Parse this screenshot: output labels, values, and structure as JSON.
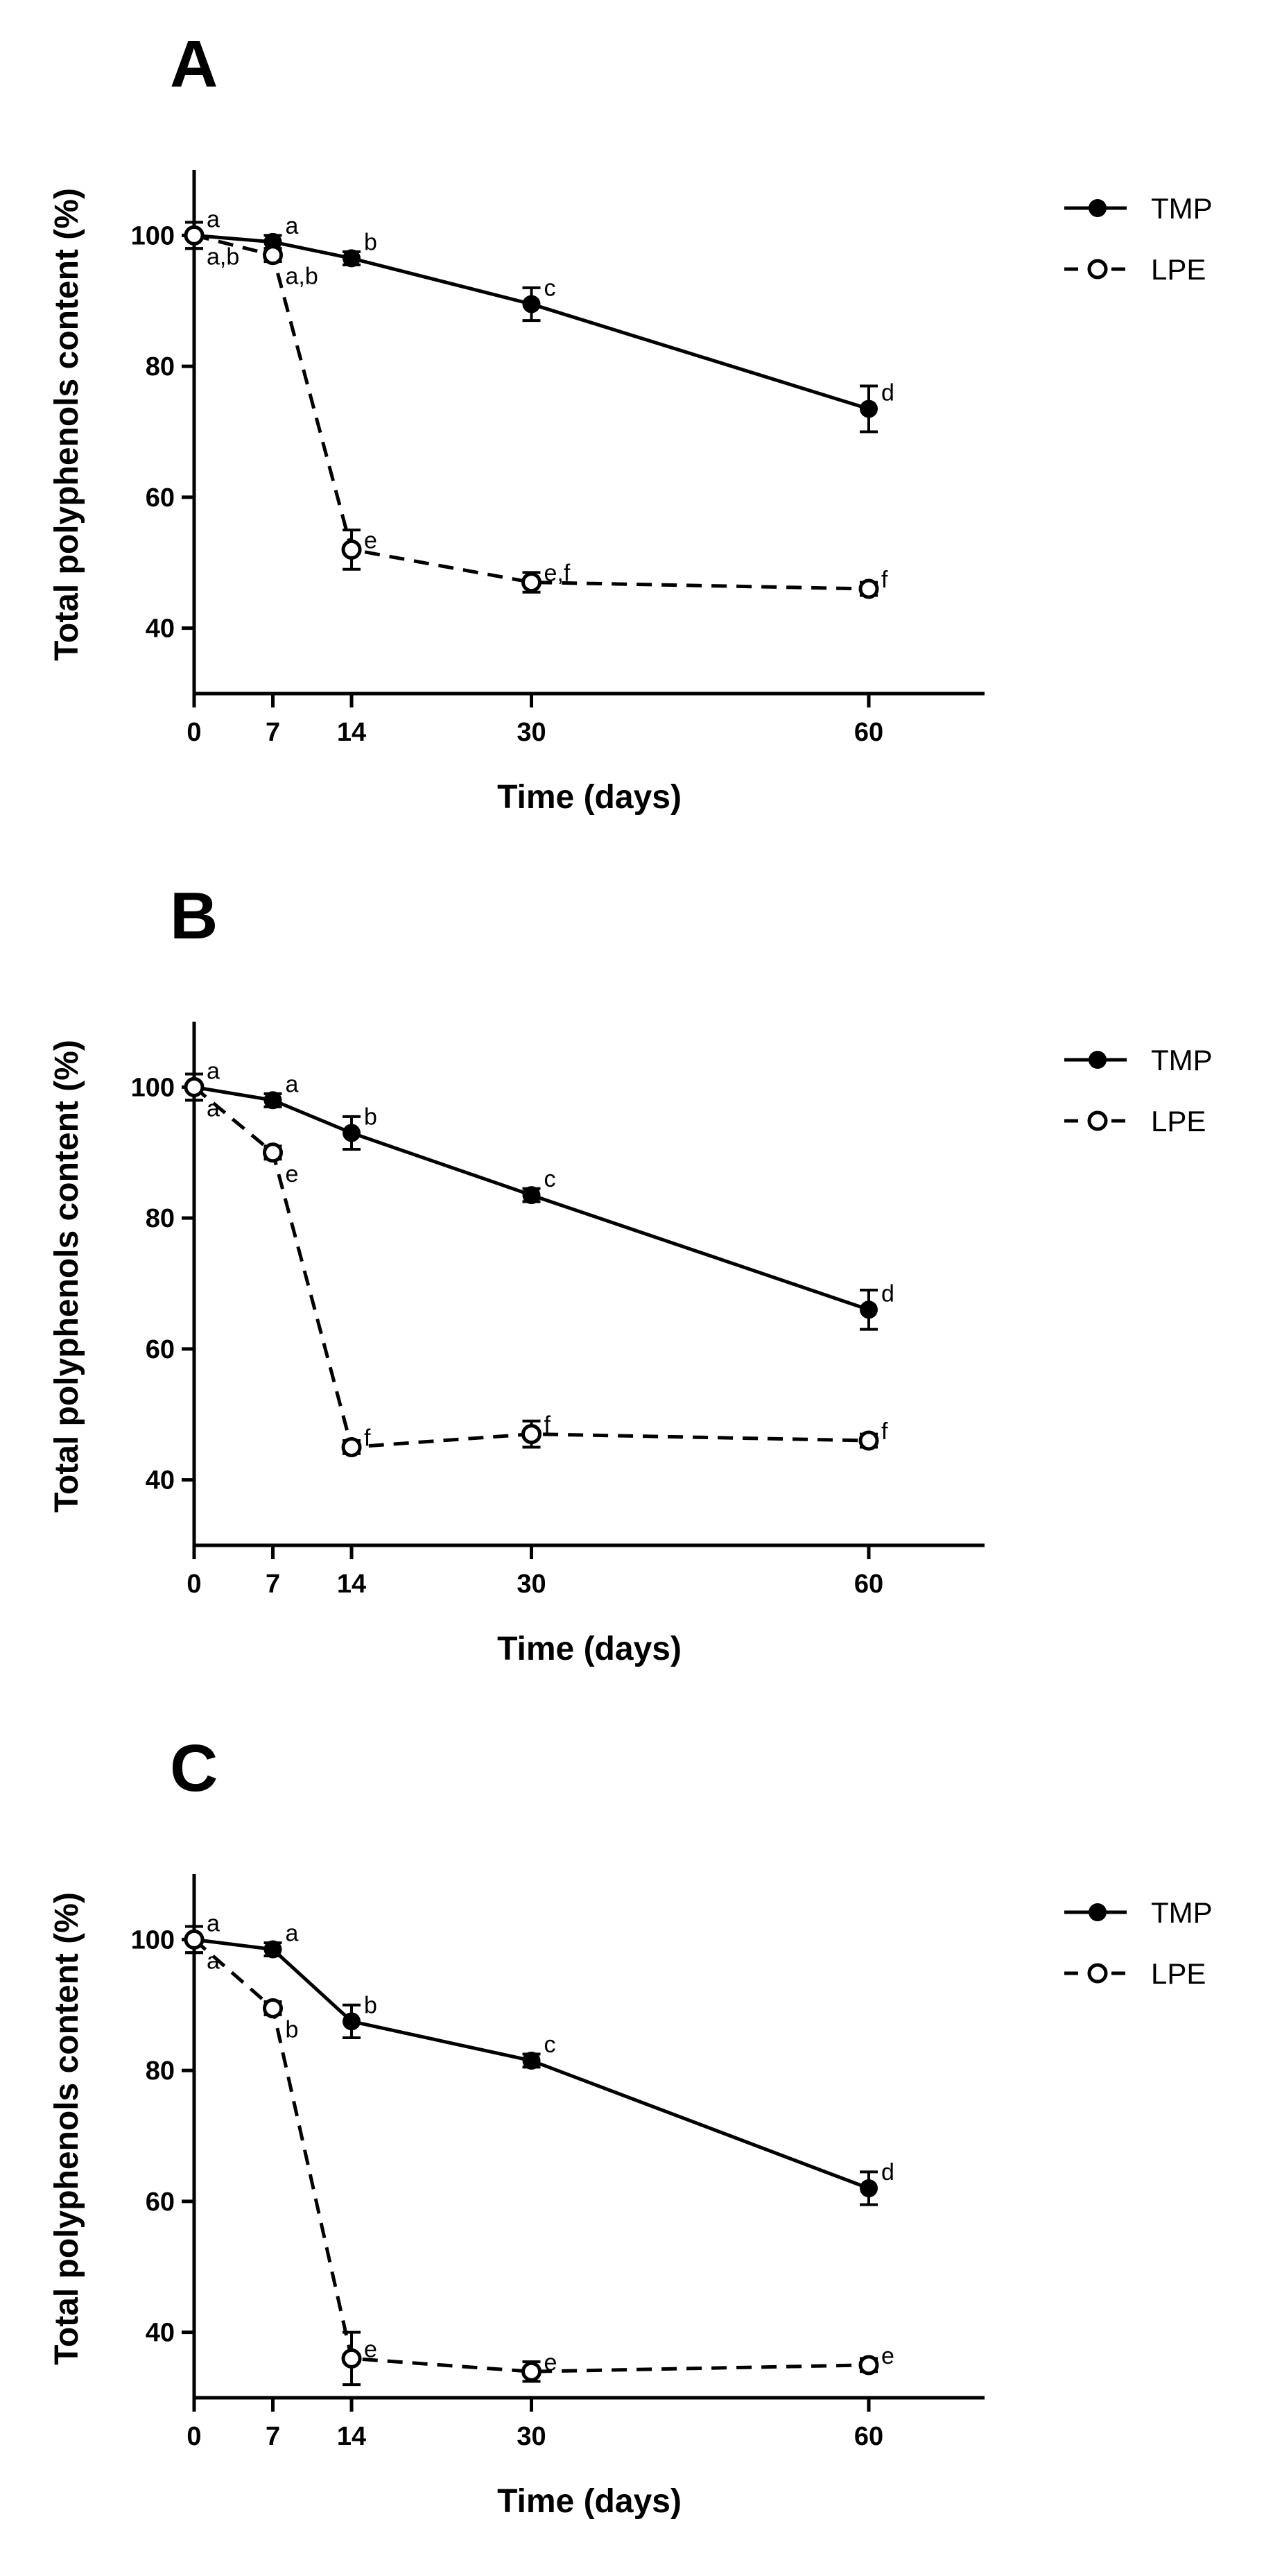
{
  "chart_data": [
    {
      "type": "line",
      "panel": "A",
      "xlabel": "Time (days)",
      "ylabel": "Total polyphenols content (%)",
      "xlim": [
        0,
        70
      ],
      "ylim": [
        30,
        110
      ],
      "xticks": [
        0,
        7,
        14,
        30,
        60
      ],
      "yticks": [
        40,
        60,
        80,
        100
      ],
      "legend": {
        "position": "right",
        "entries": [
          "TMP",
          "LPE"
        ]
      },
      "series": [
        {
          "name": "TMP",
          "style": "solid",
          "marker": "filled-circle",
          "x": [
            0,
            7,
            14,
            30,
            60
          ],
          "y": [
            100,
            99,
            96.5,
            89.5,
            73.5
          ],
          "error": [
            2,
            1,
            1,
            2.5,
            3.5
          ],
          "letters": [
            "a",
            "a",
            "b",
            "c",
            "d"
          ]
        },
        {
          "name": "LPE",
          "style": "dashed",
          "marker": "open-circle",
          "x": [
            0,
            7,
            14,
            30,
            60
          ],
          "y": [
            100,
            97,
            52,
            47,
            46
          ],
          "error": [
            2,
            1,
            3,
            1.5,
            1
          ],
          "letters": [
            "a,b",
            "a,b",
            "e",
            "e,f",
            "f"
          ]
        }
      ]
    },
    {
      "type": "line",
      "panel": "B",
      "xlabel": "Time (days)",
      "ylabel": "Total polyphenols content (%)",
      "xlim": [
        0,
        70
      ],
      "ylim": [
        30,
        110
      ],
      "xticks": [
        0,
        7,
        14,
        30,
        60
      ],
      "yticks": [
        40,
        60,
        80,
        100
      ],
      "legend": {
        "position": "right",
        "entries": [
          "TMP",
          "LPE"
        ]
      },
      "series": [
        {
          "name": "TMP",
          "style": "solid",
          "marker": "filled-circle",
          "x": [
            0,
            7,
            14,
            30,
            60
          ],
          "y": [
            100,
            98,
            93,
            83.5,
            66
          ],
          "error": [
            2,
            1,
            2.5,
            1,
            3
          ],
          "letters": [
            "a",
            "a",
            "b",
            "c",
            "d"
          ]
        },
        {
          "name": "LPE",
          "style": "dashed",
          "marker": "open-circle",
          "x": [
            0,
            7,
            14,
            30,
            60
          ],
          "y": [
            100,
            90,
            45,
            47,
            46
          ],
          "error": [
            2,
            1,
            1,
            2,
            1
          ],
          "letters": [
            "a",
            "e",
            "f",
            "f",
            "f"
          ]
        }
      ]
    },
    {
      "type": "line",
      "panel": "C",
      "xlabel": "Time (days)",
      "ylabel": "Total polyphenols content (%)",
      "xlim": [
        0,
        70
      ],
      "ylim": [
        30,
        110
      ],
      "xticks": [
        0,
        7,
        14,
        30,
        60
      ],
      "yticks": [
        40,
        60,
        80,
        100
      ],
      "legend": {
        "position": "right",
        "entries": [
          "TMP",
          "LPE"
        ]
      },
      "series": [
        {
          "name": "TMP",
          "style": "solid",
          "marker": "filled-circle",
          "x": [
            0,
            7,
            14,
            30,
            60
          ],
          "y": [
            100,
            98.5,
            87.5,
            81.5,
            62
          ],
          "error": [
            2,
            1,
            2.5,
            1,
            2.5
          ],
          "letters": [
            "a",
            "a",
            "b",
            "c",
            "d"
          ]
        },
        {
          "name": "LPE",
          "style": "dashed",
          "marker": "open-circle",
          "x": [
            0,
            7,
            14,
            30,
            60
          ],
          "y": [
            100,
            89.5,
            36,
            34,
            35
          ],
          "error": [
            2,
            1,
            4,
            1.5,
            1
          ],
          "letters": [
            "a",
            "b",
            "e",
            "e",
            "e"
          ]
        }
      ]
    }
  ]
}
